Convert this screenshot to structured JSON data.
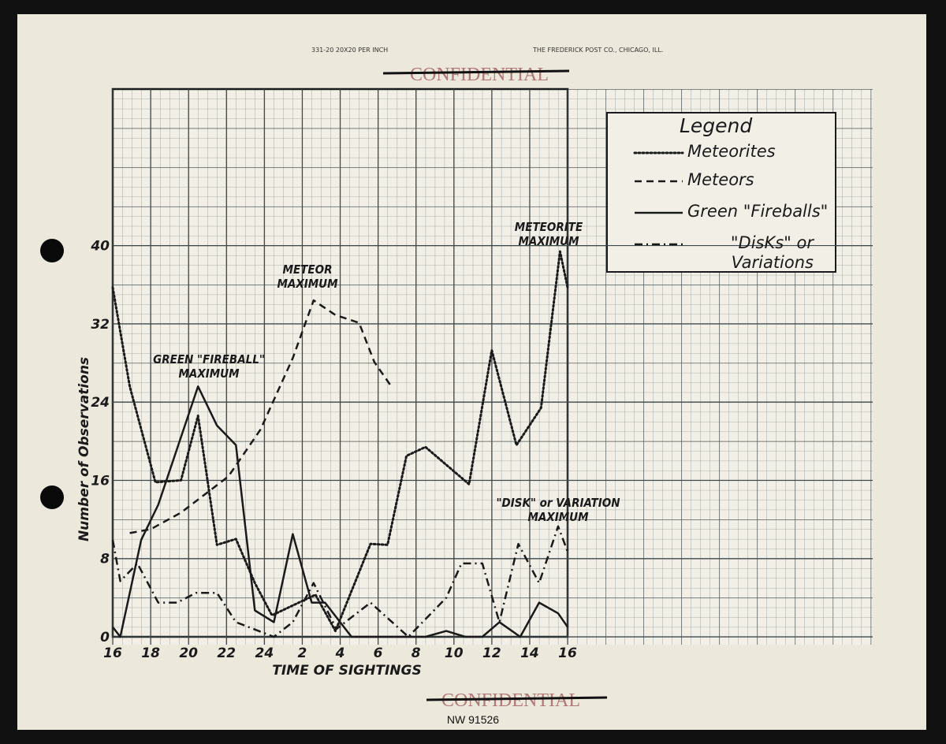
{
  "header": {
    "paper_code": "331-20 20X20 PER INCH",
    "maker": "THE FREDERICK POST CO., CHICAGO, ILL.",
    "stamp_top": "CONFIDENTIAL",
    "stamp_bottom": "CONFIDENTIAL",
    "archive_id": "NW 91526"
  },
  "chart_data": {
    "type": "line",
    "x_label": "TIME OF SIGHTINGS",
    "y_label": "Number of Observations",
    "legend_title": "Legend",
    "xlim": [
      0,
      24
    ],
    "ylim": [
      0,
      56
    ],
    "xticks": [
      {
        "value": 0,
        "label": "16"
      },
      {
        "value": 2,
        "label": "18"
      },
      {
        "value": 4,
        "label": "20"
      },
      {
        "value": 6,
        "label": "22"
      },
      {
        "value": 8,
        "label": "24"
      },
      {
        "value": 10,
        "label": "2"
      },
      {
        "value": 12,
        "label": "4"
      },
      {
        "value": 14,
        "label": "6"
      },
      {
        "value": 16,
        "label": "8"
      },
      {
        "value": 18,
        "label": "10"
      },
      {
        "value": 20,
        "label": "12"
      },
      {
        "value": 22,
        "label": "14"
      },
      {
        "value": 24,
        "label": "16"
      }
    ],
    "yticks": [
      0,
      8,
      16,
      24,
      32,
      40
    ],
    "grid": true,
    "series": [
      {
        "name": "Meteorites",
        "color": "#1a1a1a",
        "style": "dotted",
        "x": [
          0,
          0.9,
          2.25,
          3.6,
          4.5,
          5.5,
          6.5,
          7.5,
          8.4,
          10.7,
          11.75,
          13.6,
          14.5,
          15.5,
          16.5,
          18.8,
          20,
          21.3,
          22.6,
          23.6,
          24
        ],
        "values": [
          35.7,
          25.6,
          15.8,
          16,
          22.6,
          9.4,
          10,
          5.5,
          2.2,
          4.3,
          0.6,
          9.5,
          9.4,
          18.5,
          19.4,
          15.6,
          29.3,
          19.6,
          23.4,
          39.4,
          35.7
        ]
      },
      {
        "name": "Meteors",
        "color": "#1a1a1a",
        "style": "dashed",
        "x": [
          0.9,
          2,
          3.6,
          6.1,
          7.8,
          9.5,
          10.6,
          11.75,
          13,
          13.8,
          14.7
        ],
        "values": [
          10.6,
          11,
          12.7,
          16.4,
          21.2,
          28.5,
          34.4,
          32.9,
          32.1,
          28.1,
          25.6
        ]
      },
      {
        "name": "Green \"Fireballs\"",
        "color": "#1a1a1a",
        "style": "solid",
        "x": [
          0,
          0.4,
          1.5,
          2.4,
          4.5,
          5.5,
          6.5,
          7.5,
          8.5,
          9.5,
          10.5,
          11.2,
          12.6,
          16.5,
          17.6,
          18.6,
          19.5,
          20.4,
          21.5,
          22.5,
          23.5,
          24
        ],
        "values": [
          1,
          0,
          9.9,
          13.5,
          25.6,
          21.6,
          19.6,
          2.7,
          1.5,
          10.5,
          3.5,
          3.5,
          0,
          0,
          0.6,
          0,
          0,
          1.5,
          0,
          3.5,
          2.4,
          1
        ]
      },
      {
        "name": "\"DisKs\" or Variations",
        "color": "#1a1a1a",
        "style": "dashdot",
        "x": [
          0,
          0.4,
          1.3,
          2.4,
          3.4,
          4.4,
          5.5,
          6.5,
          8.5,
          9.5,
          10.6,
          11.8,
          13.6,
          15.6,
          17.6,
          18.4,
          19.5,
          20.4,
          21.4,
          22.5,
          23.5,
          24
        ],
        "values": [
          9.9,
          5.7,
          7.5,
          3.5,
          3.5,
          4.5,
          4.5,
          1.5,
          0,
          1.5,
          5.5,
          0.8,
          3.5,
          0,
          4,
          7.5,
          7.5,
          1.5,
          9.5,
          5.5,
          11.3,
          8.7
        ]
      }
    ],
    "annotations": [
      "GREEN \"FIREBALL\" MAXIMUM",
      "METEOR MAXIMUM",
      "METEORITE MAXIMUM",
      "\"DISK\" or VARIATION MAXIMUM"
    ]
  }
}
